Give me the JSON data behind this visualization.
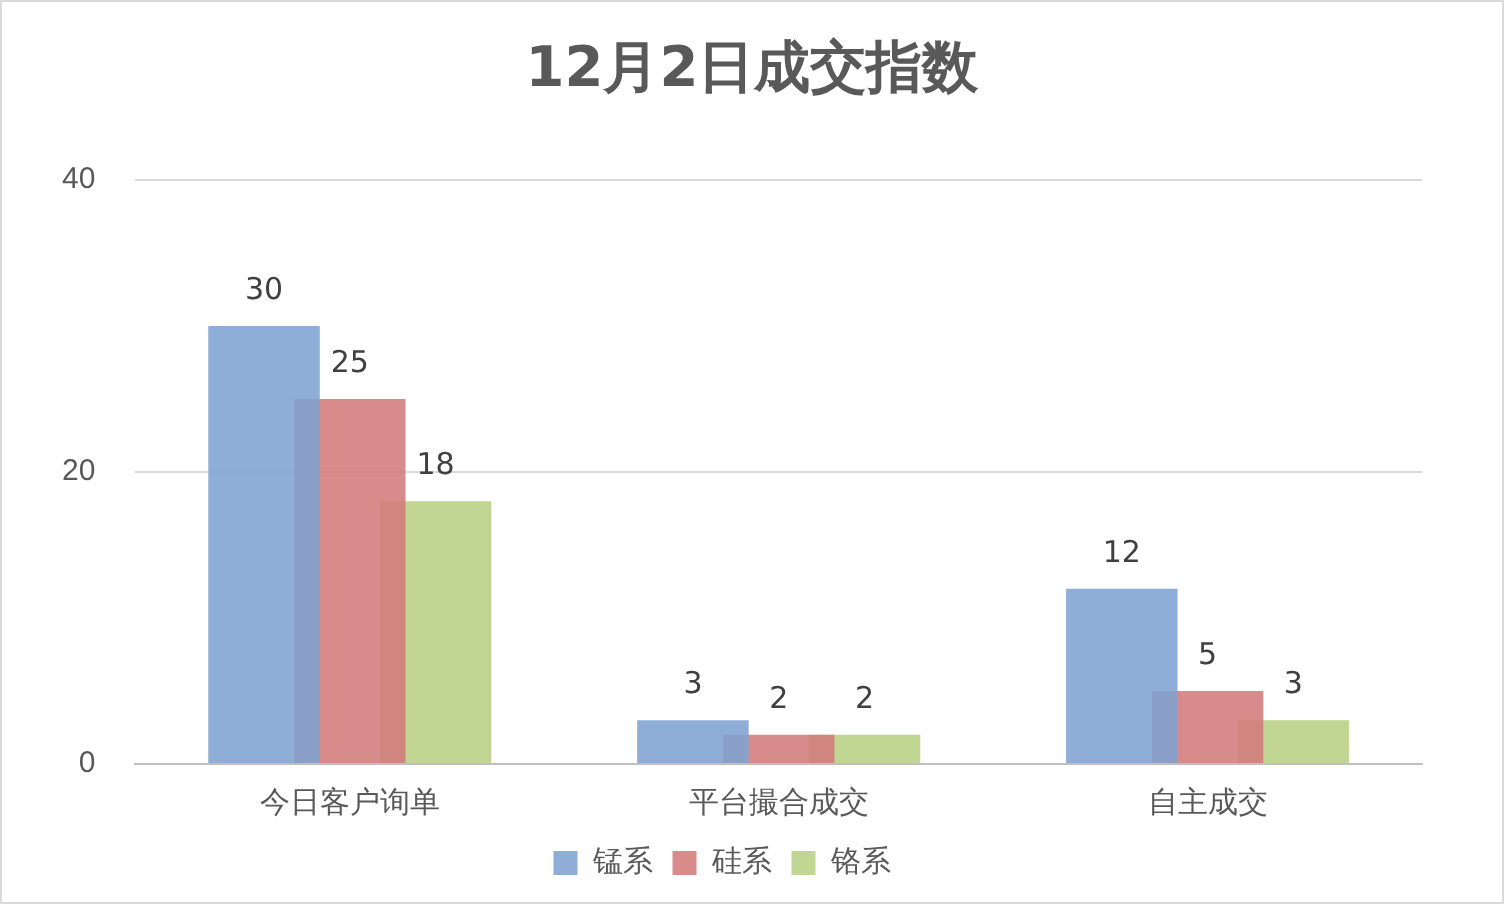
{
  "chart_data": {
    "type": "bar",
    "title": "12月2日成交指数",
    "categories": [
      "今日客户询单",
      "平台撮合成交",
      "自主成交"
    ],
    "series": [
      {
        "name": "锰系",
        "color": "#7fa3d1",
        "values": [
          30,
          3,
          12
        ]
      },
      {
        "name": "硅系",
        "color": "#d27b7b",
        "values": [
          25,
          2,
          5
        ]
      },
      {
        "name": "铬系",
        "color": "#b8d083",
        "values": [
          18,
          2,
          3
        ]
      }
    ],
    "ylim": [
      0,
      40
    ],
    "yticks": [
      0,
      20,
      40
    ],
    "grid": "y",
    "legend": "bottom",
    "data_labels": true
  }
}
